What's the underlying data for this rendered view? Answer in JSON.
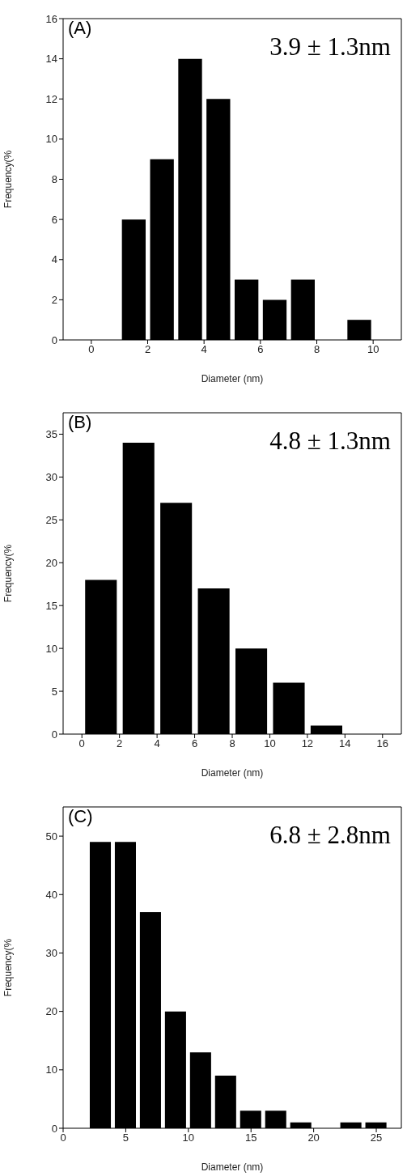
{
  "chart_data": [
    {
      "type": "histogram",
      "xlabel": "Diameter (nm)",
      "ylabel": "Frequency(%",
      "annotations": [
        "(A)",
        "3.9 ± 1.3nm"
      ],
      "color": "#000000",
      "bins": [
        1,
        2,
        3,
        4,
        5,
        6,
        7,
        8,
        9,
        10
      ],
      "values": [
        6,
        9,
        14,
        12,
        3,
        2,
        3,
        0,
        1
      ],
      "xlim": [
        -1,
        11
      ],
      "xticks": [
        0,
        2,
        4,
        6,
        8,
        10
      ],
      "ylim": [
        0,
        16
      ],
      "yticks": [
        0,
        2,
        4,
        6,
        8,
        10,
        12,
        14,
        16
      ]
    },
    {
      "type": "histogram",
      "xlabel": "Diameter (nm)",
      "ylabel": "Frequency(%",
      "annotations": [
        "(B)",
        "4.8 ± 1.3nm"
      ],
      "color": "#000000",
      "bins": [
        0,
        2,
        4,
        6,
        8,
        10,
        12,
        14
      ],
      "values": [
        18,
        34,
        27,
        17,
        10,
        6,
        1
      ],
      "xlim": [
        -1,
        17
      ],
      "xticks": [
        0,
        2,
        4,
        6,
        8,
        10,
        12,
        14,
        16
      ],
      "ylim": [
        0,
        37.5
      ],
      "yticks": [
        0,
        5,
        10,
        15,
        20,
        25,
        30,
        35
      ]
    },
    {
      "type": "histogram",
      "xlabel": "Diameter (nm)",
      "ylabel": "Frequency(%",
      "annotations": [
        "(C)",
        "6.8 ± 2.8nm"
      ],
      "color": "#000000",
      "bins": [
        2,
        4,
        6,
        8,
        10,
        12,
        14,
        16,
        18,
        20,
        22,
        24,
        26
      ],
      "values": [
        49,
        49,
        37,
        20,
        13,
        9,
        3,
        3,
        1,
        0,
        1,
        1
      ],
      "xlim": [
        0,
        27
      ],
      "xticks": [
        0,
        5,
        10,
        15,
        20,
        25
      ],
      "ylim": [
        0,
        55
      ],
      "yticks": [
        0,
        10,
        20,
        30,
        40,
        50
      ]
    }
  ]
}
